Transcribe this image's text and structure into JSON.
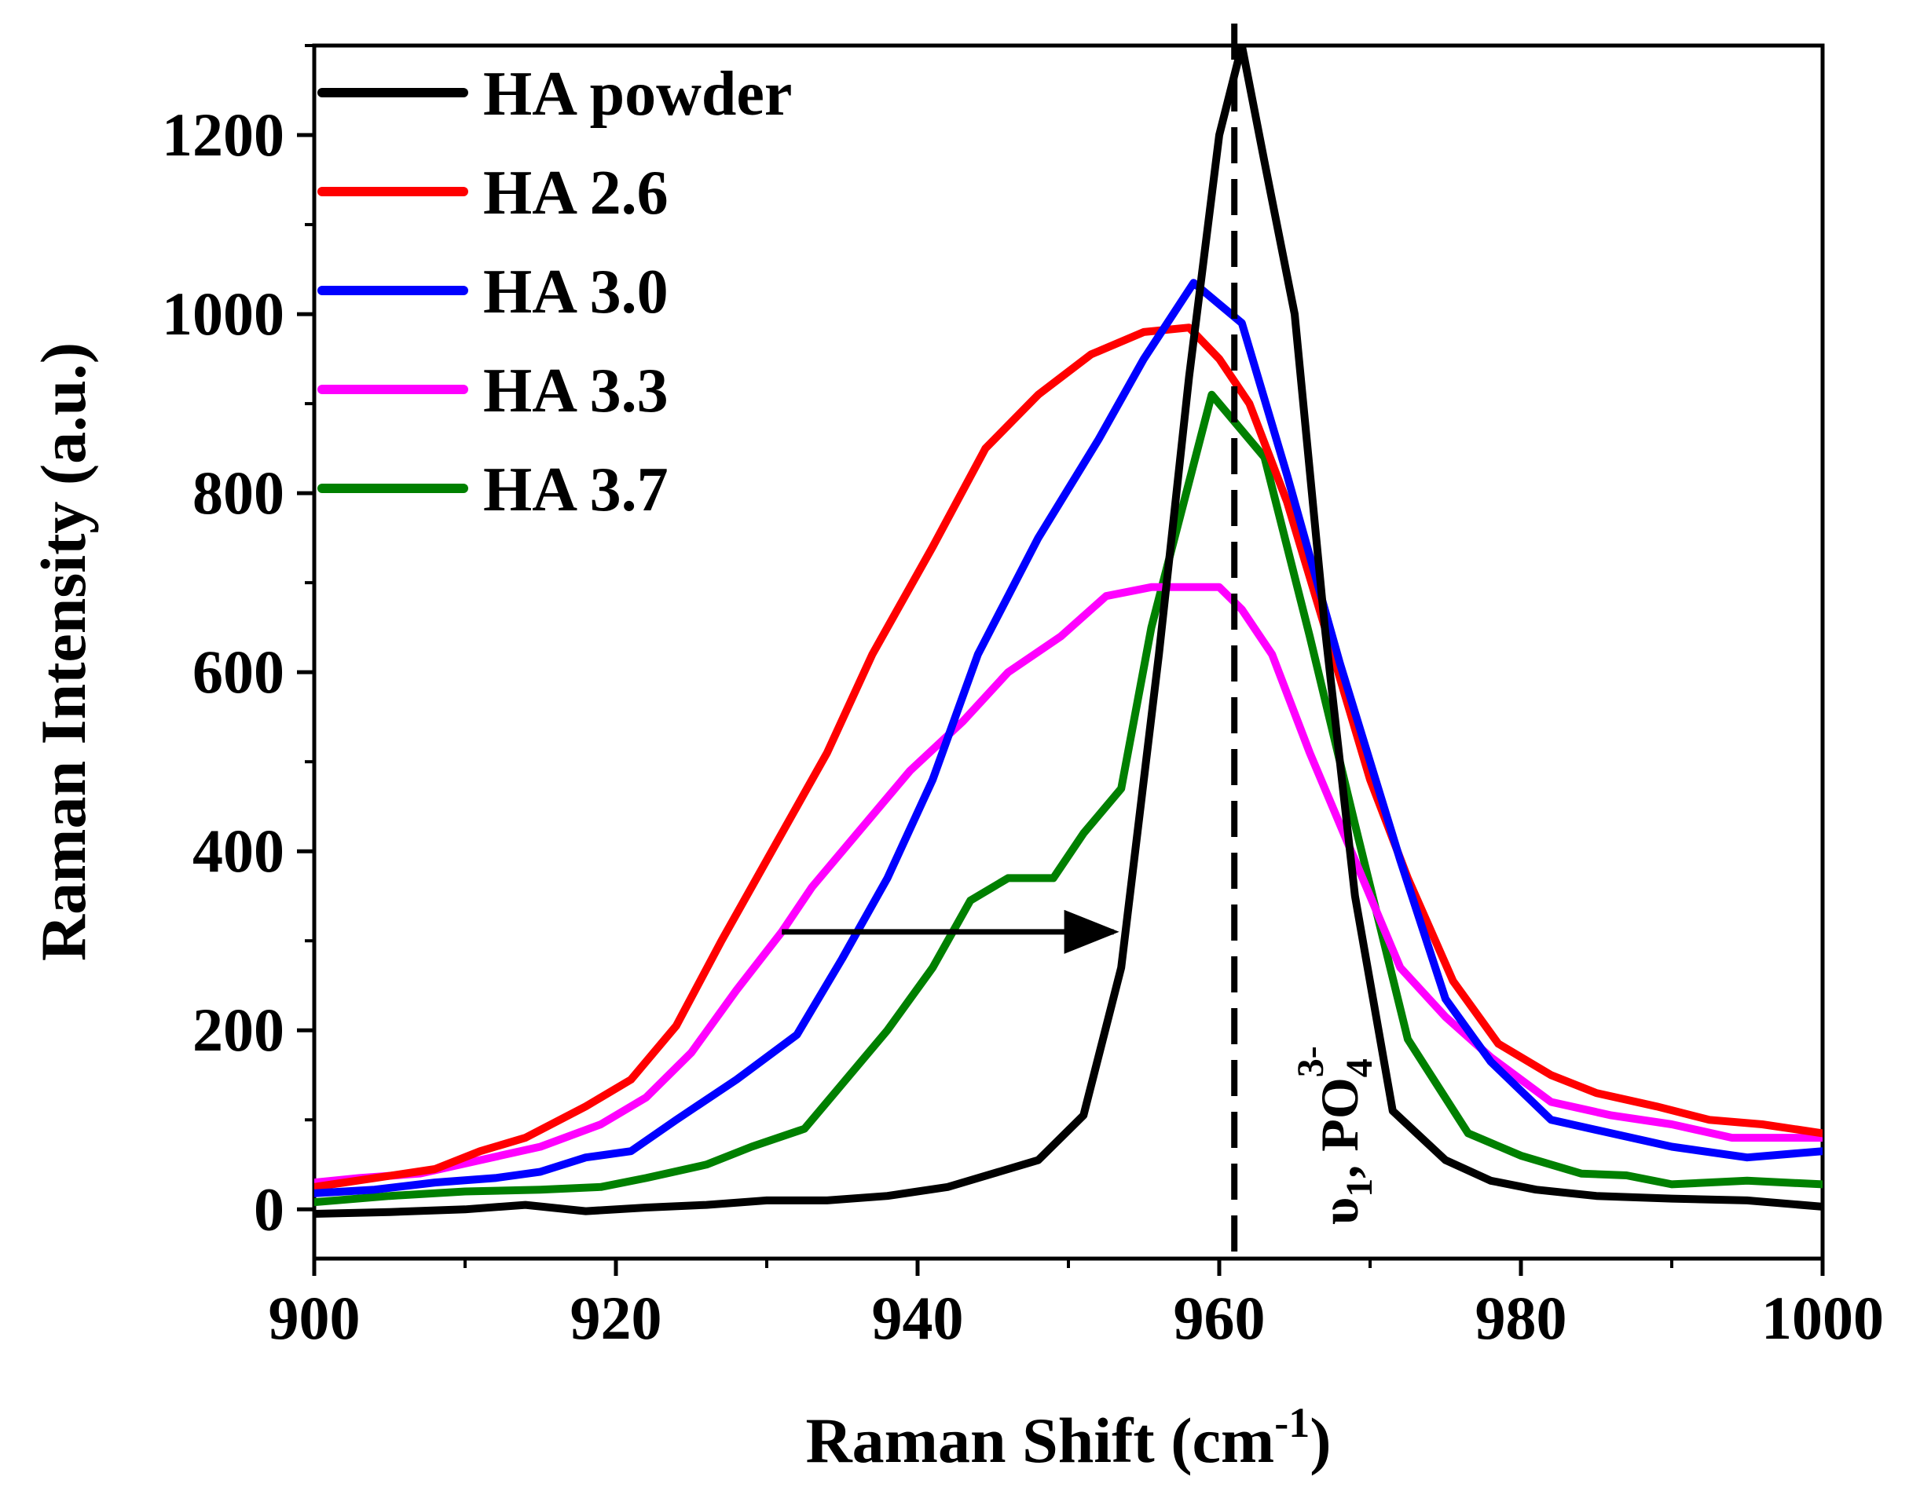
{
  "chart_data": {
    "type": "line",
    "title": "",
    "xlabel": {
      "main": "Raman Shift (cm",
      "sup": "-1",
      "close": ")"
    },
    "ylabel": "Raman Intensity (a.u.)",
    "xlim": [
      900,
      1000
    ],
    "ylim": [
      -55,
      1300
    ],
    "xticks": [
      900,
      920,
      940,
      960,
      980,
      1000
    ],
    "yticks": [
      0,
      200,
      400,
      600,
      800,
      1000,
      1200
    ],
    "grid": false,
    "legend": "top-left",
    "vline": {
      "x": 961,
      "style": "dashed"
    },
    "annotation": {
      "symbol": "υ",
      "sub": "1",
      "text": ", PO",
      "sub2": "4",
      "sup": "3-"
    },
    "arrow": {
      "x_from": 931,
      "x_to": 953,
      "y": 310
    },
    "series": [
      {
        "name": "HA powder",
        "color": "#000000",
        "x": [
          900,
          905,
          910,
          914,
          918,
          922,
          926,
          930,
          934,
          938,
          942,
          945,
          948,
          951,
          953.5,
          956,
          958,
          960,
          961.5,
          963,
          965,
          967,
          969,
          971.5,
          975,
          978,
          981,
          985,
          990,
          995,
          1000
        ],
        "y": [
          -5,
          -3,
          0,
          5,
          -2,
          2,
          5,
          10,
          10,
          15,
          25,
          40,
          55,
          105,
          270,
          620,
          930,
          1200,
          1300,
          1170,
          1000,
          650,
          350,
          110,
          55,
          32,
          22,
          15,
          12,
          10,
          3
        ]
      },
      {
        "name": "HA 2.6",
        "color": "#ff0000",
        "x": [
          900,
          904,
          908,
          911,
          914,
          918,
          921,
          924,
          927,
          930,
          934,
          937,
          941,
          944.5,
          948,
          951.5,
          955,
          958,
          960,
          962,
          964.5,
          967,
          970,
          972.5,
          975.5,
          978.5,
          982,
          985,
          989,
          992.5,
          996,
          1000
        ],
        "y": [
          25,
          35,
          45,
          65,
          80,
          115,
          145,
          205,
          300,
          390,
          510,
          620,
          740,
          850,
          910,
          955,
          980,
          985,
          950,
          900,
          790,
          650,
          480,
          370,
          255,
          185,
          150,
          130,
          115,
          100,
          95,
          85
        ]
      },
      {
        "name": "HA 3.0",
        "color": "#0000ff",
        "x": [
          900,
          904,
          908,
          912,
          915,
          918,
          921,
          924,
          928,
          932,
          935,
          938,
          941,
          944,
          948,
          952,
          955,
          958.3,
          961.5,
          964.5,
          968,
          972,
          975,
          978,
          982,
          986,
          990,
          995,
          1000
        ],
        "y": [
          18,
          22,
          30,
          35,
          42,
          58,
          65,
          100,
          145,
          195,
          280,
          370,
          480,
          620,
          750,
          860,
          950,
          1035,
          990,
          820,
          610,
          390,
          235,
          165,
          100,
          85,
          70,
          58,
          65
        ]
      },
      {
        "name": "HA 3.3",
        "color": "#ff00ff",
        "x": [
          900,
          903,
          907,
          911,
          915,
          919,
          922,
          925,
          928,
          931,
          933,
          936,
          939.5,
          943,
          946,
          949.5,
          952.5,
          955.5,
          958,
          960,
          961.5,
          963.5,
          966,
          969,
          972,
          975,
          978,
          982,
          986,
          990,
          994,
          1000
        ],
        "y": [
          30,
          35,
          40,
          55,
          70,
          95,
          125,
          175,
          245,
          310,
          360,
          420,
          490,
          545,
          600,
          640,
          685,
          695,
          695,
          695,
          670,
          620,
          510,
          390,
          270,
          215,
          170,
          120,
          105,
          95,
          80,
          80
        ]
      },
      {
        "name": "HA 3.7",
        "color": "#008000",
        "x": [
          900,
          905,
          910,
          915,
          919,
          922,
          926,
          929,
          932.5,
          935,
          938,
          941,
          943.5,
          946,
          949,
          951,
          953.5,
          955.5,
          957.5,
          959.5,
          961,
          963,
          966,
          969,
          972.5,
          976.5,
          980,
          984,
          987,
          990,
          995,
          1000
        ],
        "y": [
          8,
          15,
          20,
          22,
          25,
          35,
          50,
          70,
          90,
          140,
          200,
          270,
          345,
          370,
          370,
          420,
          470,
          650,
          780,
          910,
          880,
          840,
          640,
          430,
          190,
          85,
          60,
          40,
          38,
          28,
          32,
          28
        ]
      }
    ]
  }
}
